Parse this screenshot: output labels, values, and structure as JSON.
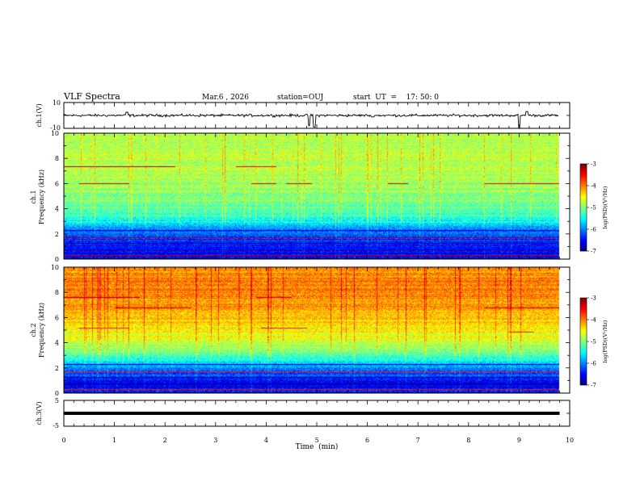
{
  "header": {
    "title": "VLF Spectra",
    "date": "Mar.6  , 2026",
    "station": "station=OUJ",
    "start_time": "start  UT  =    17: 50: 0"
  },
  "chart_data": [
    {
      "type": "line",
      "name": "ch1-waveform",
      "ylabel": "ch.1(V)",
      "ylim": [
        -10,
        10
      ],
      "yticks": [
        {
          "v": 10,
          "label": "10"
        },
        {
          "v": -10,
          "label": "-10"
        }
      ],
      "xlim": [
        0,
        10
      ],
      "baseline": 0,
      "spikes": [
        {
          "x": 1.25,
          "y": 2.5
        },
        {
          "x": 4.85,
          "y": -8
        },
        {
          "x": 4.95,
          "y": -9
        },
        {
          "x": 6.1,
          "y": -1.2
        },
        {
          "x": 9.0,
          "y": -10
        },
        {
          "x": 9.15,
          "y": 3
        }
      ]
    },
    {
      "type": "heatmap",
      "name": "ch1-spectrogram",
      "ylabel_line1": "ch.1",
      "ylabel_line2": "Frequency  (kHz)",
      "ylim": [
        0,
        10
      ],
      "yticks": [
        0,
        2,
        4,
        6,
        8,
        10
      ],
      "xlim": [
        0,
        10
      ],
      "intensity_profile": {
        "freq_khz": [
          0,
          0.5,
          1,
          1.5,
          2,
          2.5,
          3,
          3.5,
          4,
          5,
          6,
          7,
          8,
          9,
          10
        ],
        "log_psd": [
          -6.4,
          -6.6,
          -6.5,
          -6.3,
          -6.2,
          -5.9,
          -5.5,
          -5.3,
          -5.1,
          -5.0,
          -4.9,
          -4.8,
          -4.75,
          -4.8,
          -4.85
        ]
      },
      "lines_khz": [
        {
          "f": 7.4,
          "x1": 0,
          "x2": 2.2,
          "v": -3.3
        },
        {
          "f": 7.4,
          "x1": 3.4,
          "x2": 4.2,
          "v": -3.5
        },
        {
          "f": 6.0,
          "x1": 0.3,
          "x2": 1.3,
          "v": -3.4
        },
        {
          "f": 6.0,
          "x1": 3.7,
          "x2": 4.2,
          "v": -3.4
        },
        {
          "f": 6.0,
          "x1": 4.4,
          "x2": 4.9,
          "v": -3.4
        },
        {
          "f": 6.0,
          "x1": 6.4,
          "x2": 6.8,
          "v": -3.4
        },
        {
          "f": 6.0,
          "x1": 8.3,
          "x2": 9.8,
          "v": -3.5
        },
        {
          "f": 1.7,
          "x1": 0,
          "x2": 10,
          "v": -3.2
        },
        {
          "f": 0.3,
          "x1": 0,
          "x2": 10,
          "v": -3.3
        },
        {
          "f": 2.3,
          "x1": 0,
          "x2": 10,
          "v": -6.7
        },
        {
          "f": 1.3,
          "x1": 0,
          "x2": 10,
          "v": -6.9
        },
        {
          "f": 0.8,
          "x1": 0,
          "x2": 10,
          "v": -6.8
        }
      ],
      "colorbar": {
        "label": "log(PSD)(V²/Hz)",
        "range": [
          -7,
          -3
        ],
        "ticks": [
          -3,
          -4,
          -5,
          -6,
          -7
        ]
      }
    },
    {
      "type": "heatmap",
      "name": "ch2-spectrogram",
      "ylabel_line1": "ch.2",
      "ylabel_line2": "Frequency  (kHz)",
      "ylim": [
        0,
        10
      ],
      "yticks": [
        0,
        2,
        4,
        6,
        8,
        10
      ],
      "xlim": [
        0,
        10
      ],
      "intensity_profile": {
        "freq_khz": [
          0,
          0.5,
          1,
          1.5,
          2,
          2.5,
          3,
          3.5,
          4,
          5,
          6,
          7,
          8,
          9,
          10
        ],
        "log_psd": [
          -6.3,
          -6.6,
          -6.5,
          -6.2,
          -6.0,
          -5.6,
          -5.2,
          -5.0,
          -4.7,
          -4.5,
          -4.3,
          -4.1,
          -4.0,
          -4.05,
          -4.1
        ]
      },
      "lines_khz": [
        {
          "f": 7.6,
          "x1": 0,
          "x2": 1.5,
          "v": -3.2
        },
        {
          "f": 7.6,
          "x1": 3.8,
          "x2": 4.5,
          "v": -3.3
        },
        {
          "f": 6.8,
          "x1": 1.0,
          "x2": 2.5,
          "v": -3.3
        },
        {
          "f": 6.8,
          "x1": 8.3,
          "x2": 9.8,
          "v": -3.3
        },
        {
          "f": 5.2,
          "x1": 0.3,
          "x2": 1.3,
          "v": -3.6
        },
        {
          "f": 5.2,
          "x1": 3.9,
          "x2": 4.8,
          "v": -3.6
        },
        {
          "f": 4.9,
          "x1": 8.8,
          "x2": 9.3,
          "v": -3.6
        },
        {
          "f": 1.7,
          "x1": 0,
          "x2": 10,
          "v": -3.6
        },
        {
          "f": 0.35,
          "x1": 0,
          "x2": 10,
          "v": -3.5
        },
        {
          "f": 2.3,
          "x1": 0,
          "x2": 10,
          "v": -6.8
        },
        {
          "f": 1.3,
          "x1": 0,
          "x2": 10,
          "v": -6.9
        },
        {
          "f": 0.8,
          "x1": 0,
          "x2": 10,
          "v": -6.8
        }
      ],
      "colorbar": {
        "label": "log(PSD)(V²/Hz)",
        "range": [
          -7,
          -3
        ],
        "ticks": [
          -3,
          -4,
          -5,
          -6,
          -7
        ]
      }
    },
    {
      "type": "line",
      "name": "ch3-waveform",
      "ylabel": "ch.3(V)",
      "ylim": [
        -5,
        5
      ],
      "yticks": [
        {
          "v": 5,
          "label": "5"
        },
        {
          "v": -5,
          "label": "-5"
        }
      ],
      "xlim": [
        0,
        10
      ],
      "baseline": 0,
      "spikes": []
    }
  ],
  "x_axis": {
    "label": "Time  (min)",
    "ticks": [
      "0",
      "1",
      "2",
      "3",
      "4",
      "5",
      "6",
      "7",
      "8",
      "9",
      "10"
    ]
  },
  "colors": {
    "axis": "#000000",
    "waveform": "#000000"
  }
}
